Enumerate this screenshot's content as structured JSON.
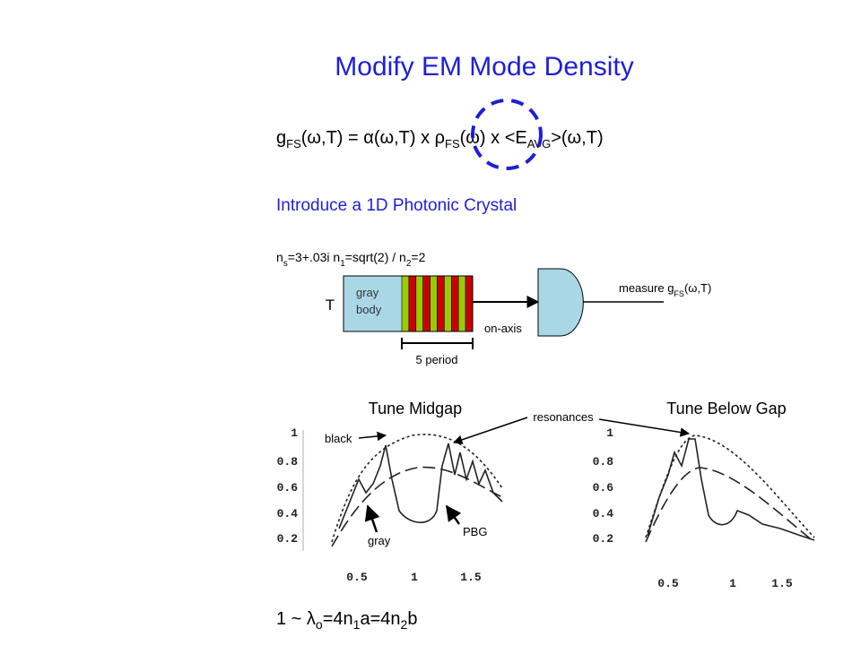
{
  "title": "Modify EM Mode Density",
  "equation": [
    {
      "text": "g"
    },
    {
      "sub": "FS"
    },
    {
      "text": "(ω,T) = α(ω,T)  x  ρ"
    },
    {
      "sub": "FS"
    },
    {
      "text": "(ω)  x  <E"
    },
    {
      "sub": "AVG"
    },
    {
      "text": ">(ω,T)"
    }
  ],
  "subtitle": "Introduce a 1D Photonic Crystal",
  "indices": [
    {
      "text": "n"
    },
    {
      "sub": "s"
    },
    {
      "text": "=3+.03i      n"
    },
    {
      "sub": "1"
    },
    {
      "text": "=sqrt(2) / n"
    },
    {
      "sub": "2"
    },
    {
      "text": "=2"
    }
  ],
  "diagram": {
    "source_label": "T",
    "body_label": [
      "gray",
      "body"
    ],
    "axis_label": "on-axis",
    "period_label": "5 period",
    "measure": [
      {
        "text": "measure g"
      },
      {
        "sub": "FS"
      },
      {
        "text": "(ω,T)"
      }
    ]
  },
  "plots": [
    {
      "title": "Tune Midgap",
      "yticks": [
        "1",
        "0.8",
        "0.6",
        "0.4",
        "0.2"
      ],
      "xticks": [
        "0.5",
        "1",
        "1.5"
      ]
    },
    {
      "title": "Tune Below Gap",
      "yticks": [
        "1",
        "0.8",
        "0.6",
        "0.4",
        "0.2"
      ],
      "xticks": [
        "0.5",
        "1",
        "1.5"
      ]
    }
  ],
  "annotations": {
    "black": "black",
    "gray": "gray",
    "pbg": "PBG",
    "resonances": "resonances"
  },
  "footer": [
    {
      "text": "1 ~ λ"
    },
    {
      "sub": "o"
    },
    {
      "text": "=4n"
    },
    {
      "sub": "1"
    },
    {
      "text": "a=4n"
    },
    {
      "sub": "2"
    },
    {
      "text": "b"
    }
  ]
}
